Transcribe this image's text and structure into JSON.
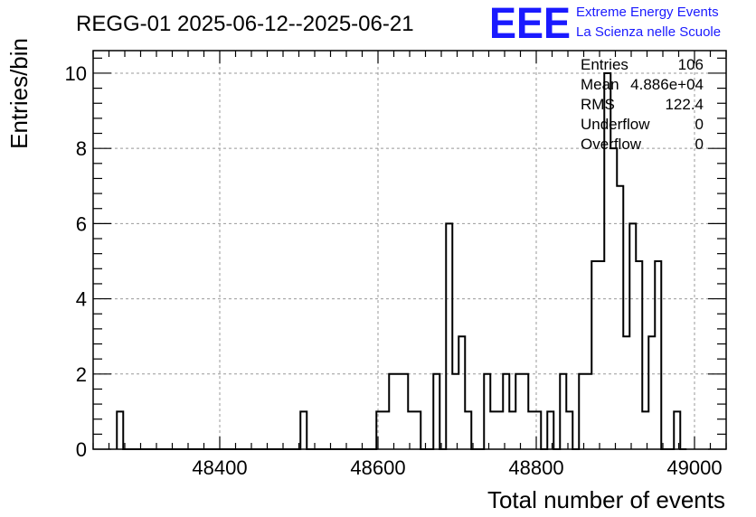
{
  "chart_data": {
    "type": "histogram",
    "title": "REGG-01 2025-06-12--2025-06-21",
    "xlabel": "Total number of events",
    "ylabel": "Entries/bin",
    "xlim": [
      48240,
      49040
    ],
    "ylim": [
      0,
      10.6
    ],
    "bin_start": 48270,
    "bin_width": 8,
    "values": [
      1,
      0,
      0,
      0,
      0,
      0,
      0,
      0,
      0,
      0,
      0,
      0,
      0,
      0,
      0,
      0,
      0,
      0,
      0,
      0,
      0,
      0,
      0,
      0,
      0,
      0,
      0,
      0,
      0,
      1,
      0,
      0,
      0,
      0,
      0,
      0,
      0,
      0,
      0,
      0,
      0,
      1,
      1,
      2,
      2,
      2,
      1,
      1,
      0,
      0,
      2,
      0,
      6,
      2,
      3,
      1,
      0,
      0,
      2,
      1,
      1,
      2,
      1,
      2,
      2,
      1,
      1,
      0,
      1,
      0,
      2,
      1,
      0,
      2,
      2,
      5,
      5,
      10,
      8,
      7,
      3,
      6,
      5,
      1,
      3,
      5,
      0,
      0,
      1,
      0
    ],
    "xticks": [
      {
        "value": 48400,
        "label": "48400"
      },
      {
        "value": 48600,
        "label": "48600"
      },
      {
        "value": 48800,
        "label": "48800"
      },
      {
        "value": 49000,
        "label": "49000"
      }
    ],
    "yticks": [
      {
        "value": 0,
        "label": "0"
      },
      {
        "value": 2,
        "label": "2"
      },
      {
        "value": 4,
        "label": "4"
      },
      {
        "value": 6,
        "label": "6"
      },
      {
        "value": 8,
        "label": "8"
      },
      {
        "value": 10,
        "label": "10"
      }
    ],
    "x_minor_step": 20,
    "y_minor_step": 0.4,
    "grid": true,
    "stats": [
      {
        "label": "Entries",
        "value": "106"
      },
      {
        "label": "Mean",
        "value": "4.886e+04"
      },
      {
        "label": "RMS",
        "value": "122.4"
      },
      {
        "label": "Underflow",
        "value": "0"
      },
      {
        "label": "Overflow",
        "value": "0"
      }
    ],
    "stats_placement": "top-right"
  },
  "logo": {
    "letters": "EEE",
    "line1": "Extreme Energy Events",
    "line2": "La Scienza nelle Scuole",
    "color": "#1a1aff"
  }
}
